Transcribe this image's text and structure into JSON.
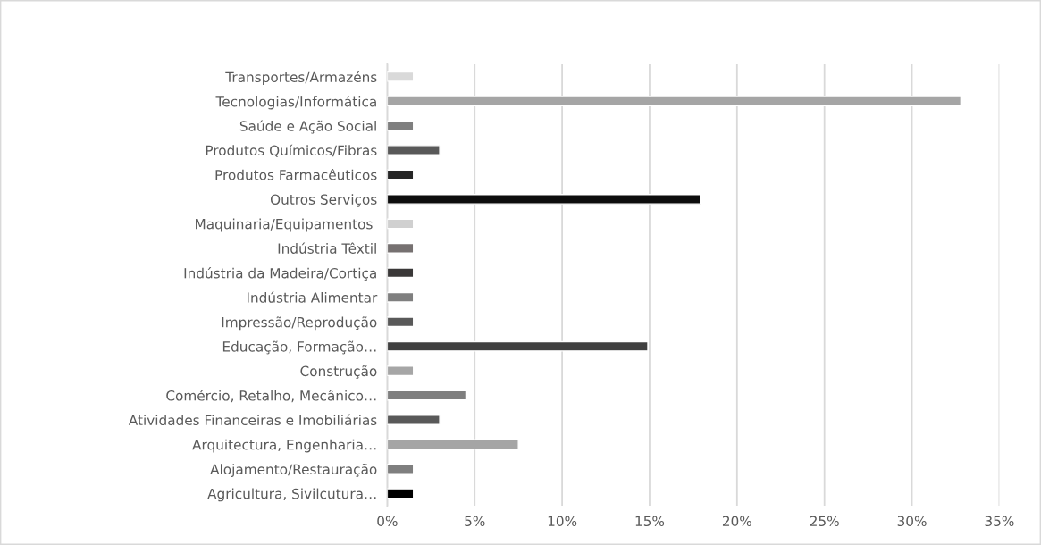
{
  "chart_data": {
    "type": "bar",
    "orientation": "horizontal",
    "categories": [
      "Transportes/Armazéns",
      "Tecnologias/Informática",
      "Saúde e Ação Social",
      "Produtos Químicos/Fibras",
      "Produtos Farmacêuticos",
      "Outros Serviços",
      "Maquinaria/Equipamentos ",
      "Indústria Têxtil",
      "Indústria da Madeira/Cortiça",
      "Indústria Alimentar",
      "Impressão/Reprodução",
      "Educação, Formação…",
      "Construção",
      "Comércio, Retalho, Mecânico…",
      "Atividades Financeiras e Imobiliárias",
      "Arquitectura, Engenharia…",
      "Alojamento/Restauração",
      "Agricultura, Sivilcutura…"
    ],
    "values": [
      1.5,
      32.8,
      1.5,
      3.0,
      1.5,
      17.9,
      1.5,
      1.5,
      1.5,
      1.5,
      1.5,
      14.9,
      1.5,
      4.5,
      3.0,
      7.5,
      1.5,
      1.5
    ],
    "colors": [
      "#d9d9d9",
      "#a5a5a5",
      "#7f7f7f",
      "#595959",
      "#262626",
      "#0d0d0d",
      "#d0d0d0",
      "#767171",
      "#3a3838",
      "#7f7f7f",
      "#595959",
      "#404040",
      "#a6a6a6",
      "#7f7f7f",
      "#595959",
      "#a5a5a5",
      "#7f7f7f",
      "#000000"
    ],
    "xlim": [
      0,
      35
    ],
    "xticks": [
      {
        "value": 0,
        "label": "0%"
      },
      {
        "value": 5,
        "label": "5%"
      },
      {
        "value": 10,
        "label": "10%"
      },
      {
        "value": 15,
        "label": "15%"
      },
      {
        "value": 20,
        "label": "20%"
      },
      {
        "value": 25,
        "label": "25%"
      },
      {
        "value": 30,
        "label": "30%"
      },
      {
        "value": 35,
        "label": "35%"
      }
    ],
    "grid": "x",
    "legend": false
  }
}
